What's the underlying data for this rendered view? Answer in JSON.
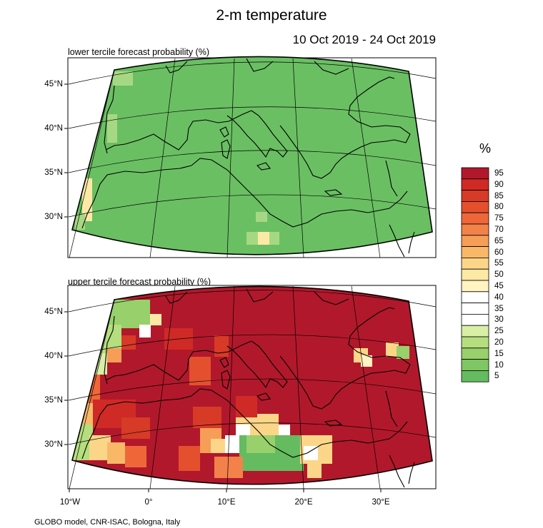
{
  "title": "2-m temperature",
  "period": "10 Oct 2019 - 24 Oct 2019",
  "credit": "GLOBO model, CNR-ISAC, Bologna, Italy",
  "legend": {
    "unit": "%",
    "labels": [
      "95",
      "90",
      "85",
      "80",
      "75",
      "70",
      "65",
      "60",
      "55",
      "50",
      "45",
      "40",
      "35",
      "30",
      "25",
      "20",
      "15",
      "10",
      "5"
    ],
    "colors": [
      "#b2182b",
      "#cf2a26",
      "#d73a27",
      "#e4502e",
      "#ef6739",
      "#f3824a",
      "#f69d58",
      "#f9b868",
      "#fcd688",
      "#fde9a6",
      "#fff4c2",
      "#ffffff",
      "#ffffff",
      "#ffffff",
      "#d9efa5",
      "#b5de7e",
      "#98d06c",
      "#7fc665",
      "#65bb5f"
    ]
  },
  "panels": [
    {
      "id": "lower",
      "title": "lower tercile forecast probability (%)",
      "ytick_labels": [
        "45°N",
        "40°N",
        "35°N",
        "30°N"
      ]
    },
    {
      "id": "upper",
      "title": "upper tercile forecast probability (%)",
      "ytick_labels": [
        "45°N",
        "40°N",
        "35°N",
        "30°N"
      ]
    }
  ],
  "xtick_labels": [
    "10°W",
    "0°",
    "10°E",
    "20°E",
    "30°E"
  ],
  "map_colors": {
    "lower_base": "#6abf63",
    "upper_base": "#b2182b",
    "coast": "#000000",
    "graticule": "#000000"
  }
}
